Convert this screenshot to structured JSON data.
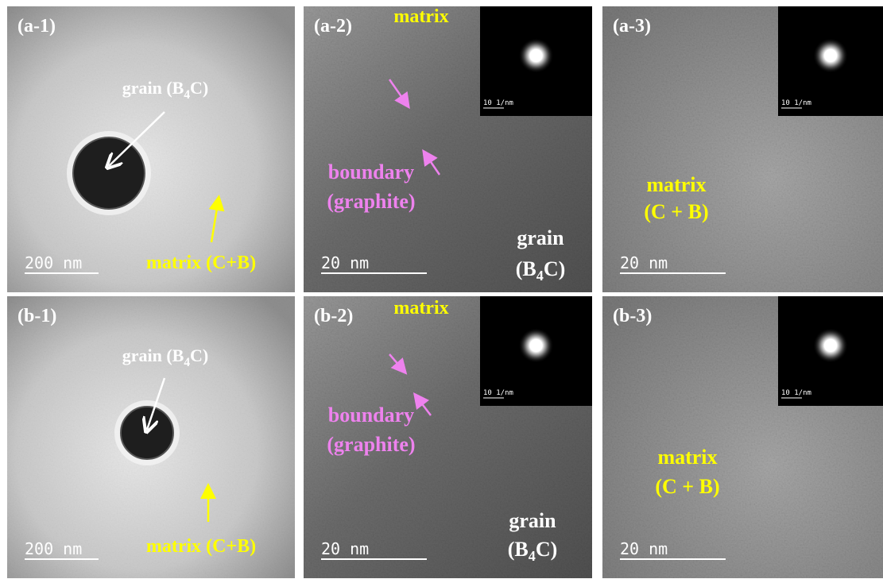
{
  "panels": [
    {
      "label": "(a-1)",
      "scale_bar": "200 nm",
      "lines": [
        {
          "text": "grain (B",
          "sub": "4",
          "tail": "C)"
        },
        {
          "text": "matrix (C+B)"
        }
      ]
    },
    {
      "label": "(a-2)",
      "scale_bar": "20 nm",
      "inset": "10 1/nm",
      "lines": [
        {
          "text": "matrix"
        },
        {
          "text": "boundary"
        },
        {
          "text": "(graphite)"
        },
        {
          "text": "grain"
        },
        {
          "text": "(B",
          "sub": "4",
          "tail": "C)"
        }
      ]
    },
    {
      "label": "(a-3)",
      "scale_bar": "20 nm",
      "inset": "10 1/nm",
      "lines": [
        {
          "text": "matrix"
        },
        {
          "text": "(C + B)"
        }
      ]
    },
    {
      "label": "(b-1)",
      "scale_bar": "200 nm",
      "lines": [
        {
          "text": "grain (B",
          "sub": "4",
          "tail": "C)"
        },
        {
          "text": "matrix (C+B)"
        }
      ]
    },
    {
      "label": "(b-2)",
      "scale_bar": "20 nm",
      "inset": "10 1/nm",
      "lines": [
        {
          "text": "matrix"
        },
        {
          "text": "boundary"
        },
        {
          "text": "(graphite)"
        },
        {
          "text": "grain"
        },
        {
          "text": "(B",
          "sub": "4",
          "tail": "C)"
        }
      ]
    },
    {
      "label": "(b-3)",
      "scale_bar": "20 nm",
      "inset": "10 1/nm",
      "lines": [
        {
          "text": "matrix"
        },
        {
          "text": "(C + B)"
        }
      ]
    }
  ]
}
